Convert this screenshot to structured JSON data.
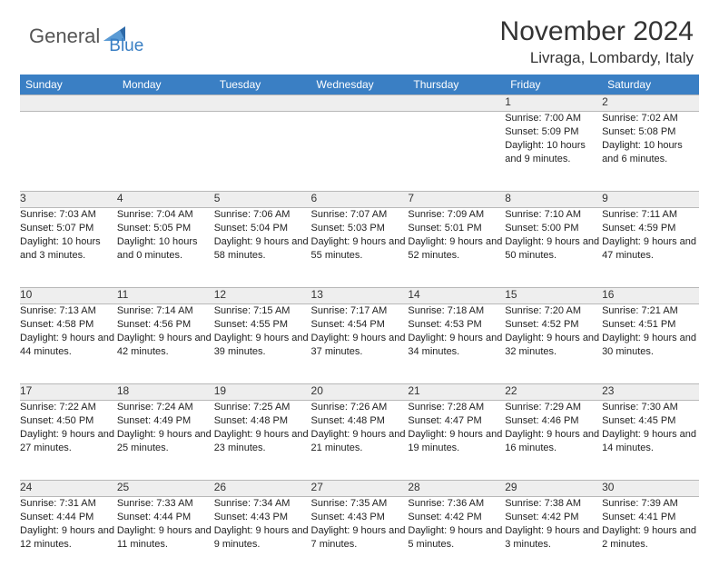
{
  "brand": {
    "part1": "General",
    "part2": "Blue"
  },
  "header": {
    "month": "November 2024",
    "location": "Livraga, Lombardy, Italy"
  },
  "style": {
    "header_bg": "#3a7fc4",
    "header_color": "#ffffff",
    "daynum_bg": "#eeeeee",
    "border_color": "#b8b8b8",
    "body_font_size": 11,
    "brand_gray": "#555555",
    "brand_blue": "#3a7fc4"
  },
  "daysOfWeek": [
    "Sunday",
    "Monday",
    "Tuesday",
    "Wednesday",
    "Thursday",
    "Friday",
    "Saturday"
  ],
  "weeks": [
    [
      null,
      null,
      null,
      null,
      null,
      {
        "n": "1",
        "sr": "7:00 AM",
        "ss": "5:09 PM",
        "dl": "10 hours and 9 minutes."
      },
      {
        "n": "2",
        "sr": "7:02 AM",
        "ss": "5:08 PM",
        "dl": "10 hours and 6 minutes."
      }
    ],
    [
      {
        "n": "3",
        "sr": "7:03 AM",
        "ss": "5:07 PM",
        "dl": "10 hours and 3 minutes."
      },
      {
        "n": "4",
        "sr": "7:04 AM",
        "ss": "5:05 PM",
        "dl": "10 hours and 0 minutes."
      },
      {
        "n": "5",
        "sr": "7:06 AM",
        "ss": "5:04 PM",
        "dl": "9 hours and 58 minutes."
      },
      {
        "n": "6",
        "sr": "7:07 AM",
        "ss": "5:03 PM",
        "dl": "9 hours and 55 minutes."
      },
      {
        "n": "7",
        "sr": "7:09 AM",
        "ss": "5:01 PM",
        "dl": "9 hours and 52 minutes."
      },
      {
        "n": "8",
        "sr": "7:10 AM",
        "ss": "5:00 PM",
        "dl": "9 hours and 50 minutes."
      },
      {
        "n": "9",
        "sr": "7:11 AM",
        "ss": "4:59 PM",
        "dl": "9 hours and 47 minutes."
      }
    ],
    [
      {
        "n": "10",
        "sr": "7:13 AM",
        "ss": "4:58 PM",
        "dl": "9 hours and 44 minutes."
      },
      {
        "n": "11",
        "sr": "7:14 AM",
        "ss": "4:56 PM",
        "dl": "9 hours and 42 minutes."
      },
      {
        "n": "12",
        "sr": "7:15 AM",
        "ss": "4:55 PM",
        "dl": "9 hours and 39 minutes."
      },
      {
        "n": "13",
        "sr": "7:17 AM",
        "ss": "4:54 PM",
        "dl": "9 hours and 37 minutes."
      },
      {
        "n": "14",
        "sr": "7:18 AM",
        "ss": "4:53 PM",
        "dl": "9 hours and 34 minutes."
      },
      {
        "n": "15",
        "sr": "7:20 AM",
        "ss": "4:52 PM",
        "dl": "9 hours and 32 minutes."
      },
      {
        "n": "16",
        "sr": "7:21 AM",
        "ss": "4:51 PM",
        "dl": "9 hours and 30 minutes."
      }
    ],
    [
      {
        "n": "17",
        "sr": "7:22 AM",
        "ss": "4:50 PM",
        "dl": "9 hours and 27 minutes."
      },
      {
        "n": "18",
        "sr": "7:24 AM",
        "ss": "4:49 PM",
        "dl": "9 hours and 25 minutes."
      },
      {
        "n": "19",
        "sr": "7:25 AM",
        "ss": "4:48 PM",
        "dl": "9 hours and 23 minutes."
      },
      {
        "n": "20",
        "sr": "7:26 AM",
        "ss": "4:48 PM",
        "dl": "9 hours and 21 minutes."
      },
      {
        "n": "21",
        "sr": "7:28 AM",
        "ss": "4:47 PM",
        "dl": "9 hours and 19 minutes."
      },
      {
        "n": "22",
        "sr": "7:29 AM",
        "ss": "4:46 PM",
        "dl": "9 hours and 16 minutes."
      },
      {
        "n": "23",
        "sr": "7:30 AM",
        "ss": "4:45 PM",
        "dl": "9 hours and 14 minutes."
      }
    ],
    [
      {
        "n": "24",
        "sr": "7:31 AM",
        "ss": "4:44 PM",
        "dl": "9 hours and 12 minutes."
      },
      {
        "n": "25",
        "sr": "7:33 AM",
        "ss": "4:44 PM",
        "dl": "9 hours and 11 minutes."
      },
      {
        "n": "26",
        "sr": "7:34 AM",
        "ss": "4:43 PM",
        "dl": "9 hours and 9 minutes."
      },
      {
        "n": "27",
        "sr": "7:35 AM",
        "ss": "4:43 PM",
        "dl": "9 hours and 7 minutes."
      },
      {
        "n": "28",
        "sr": "7:36 AM",
        "ss": "4:42 PM",
        "dl": "9 hours and 5 minutes."
      },
      {
        "n": "29",
        "sr": "7:38 AM",
        "ss": "4:42 PM",
        "dl": "9 hours and 3 minutes."
      },
      {
        "n": "30",
        "sr": "7:39 AM",
        "ss": "4:41 PM",
        "dl": "9 hours and 2 minutes."
      }
    ]
  ],
  "labels": {
    "sunrise": "Sunrise:",
    "sunset": "Sunset:",
    "daylight": "Daylight:"
  }
}
